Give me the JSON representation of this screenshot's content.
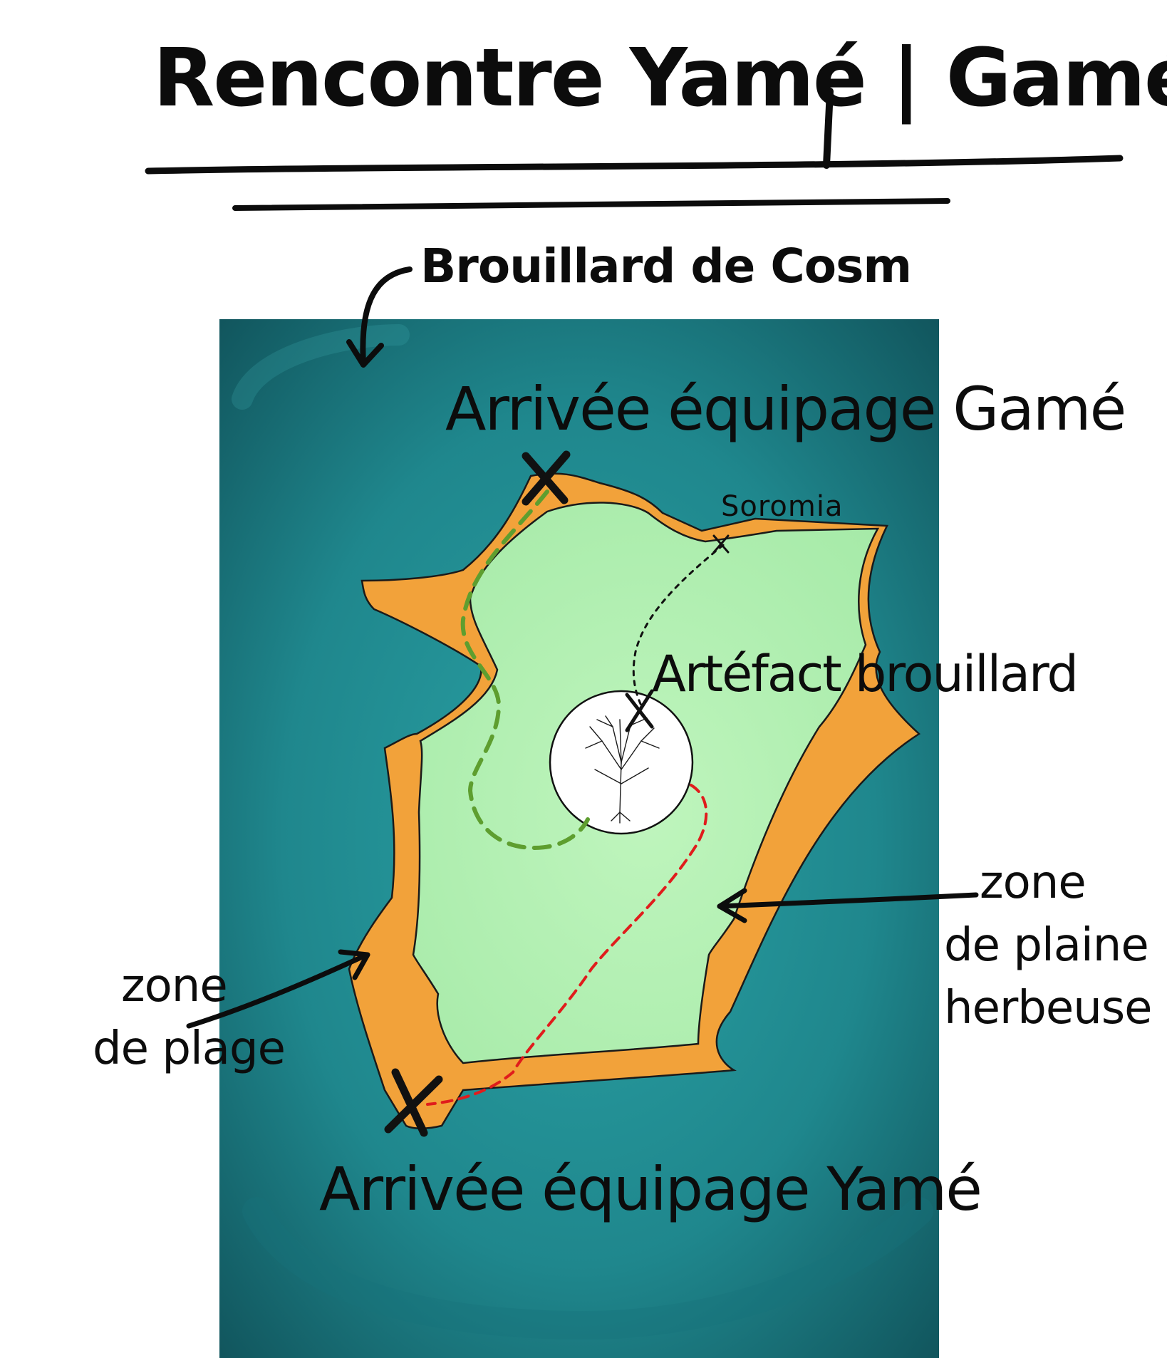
{
  "title": "Rencontre Yamé | Gamé",
  "labels": {
    "fog": "Brouillard de Cosm",
    "arrival_game": "Arrivée équipage Gamé",
    "soromia": "Soromia",
    "artefact": "Artéfact brouillard",
    "arrival_yame": "Arrivée équipage Yamé",
    "beach_zone": [
      "zone",
      "de plage"
    ],
    "plain_zone": [
      "zone",
      "de plaine",
      "herbeuse"
    ]
  },
  "colors": {
    "sea": "#1f8a8f",
    "sea_dark": "#0f4f57",
    "beach": "#f2a23a",
    "plain": "#b5f2b5",
    "path_game": "#5e9e2f",
    "path_yame": "#e01c1c",
    "ink": "#0c0c0c"
  },
  "icons": [
    "arrival-cross-icon",
    "tree-icon",
    "pointer-arrow-icon"
  ]
}
